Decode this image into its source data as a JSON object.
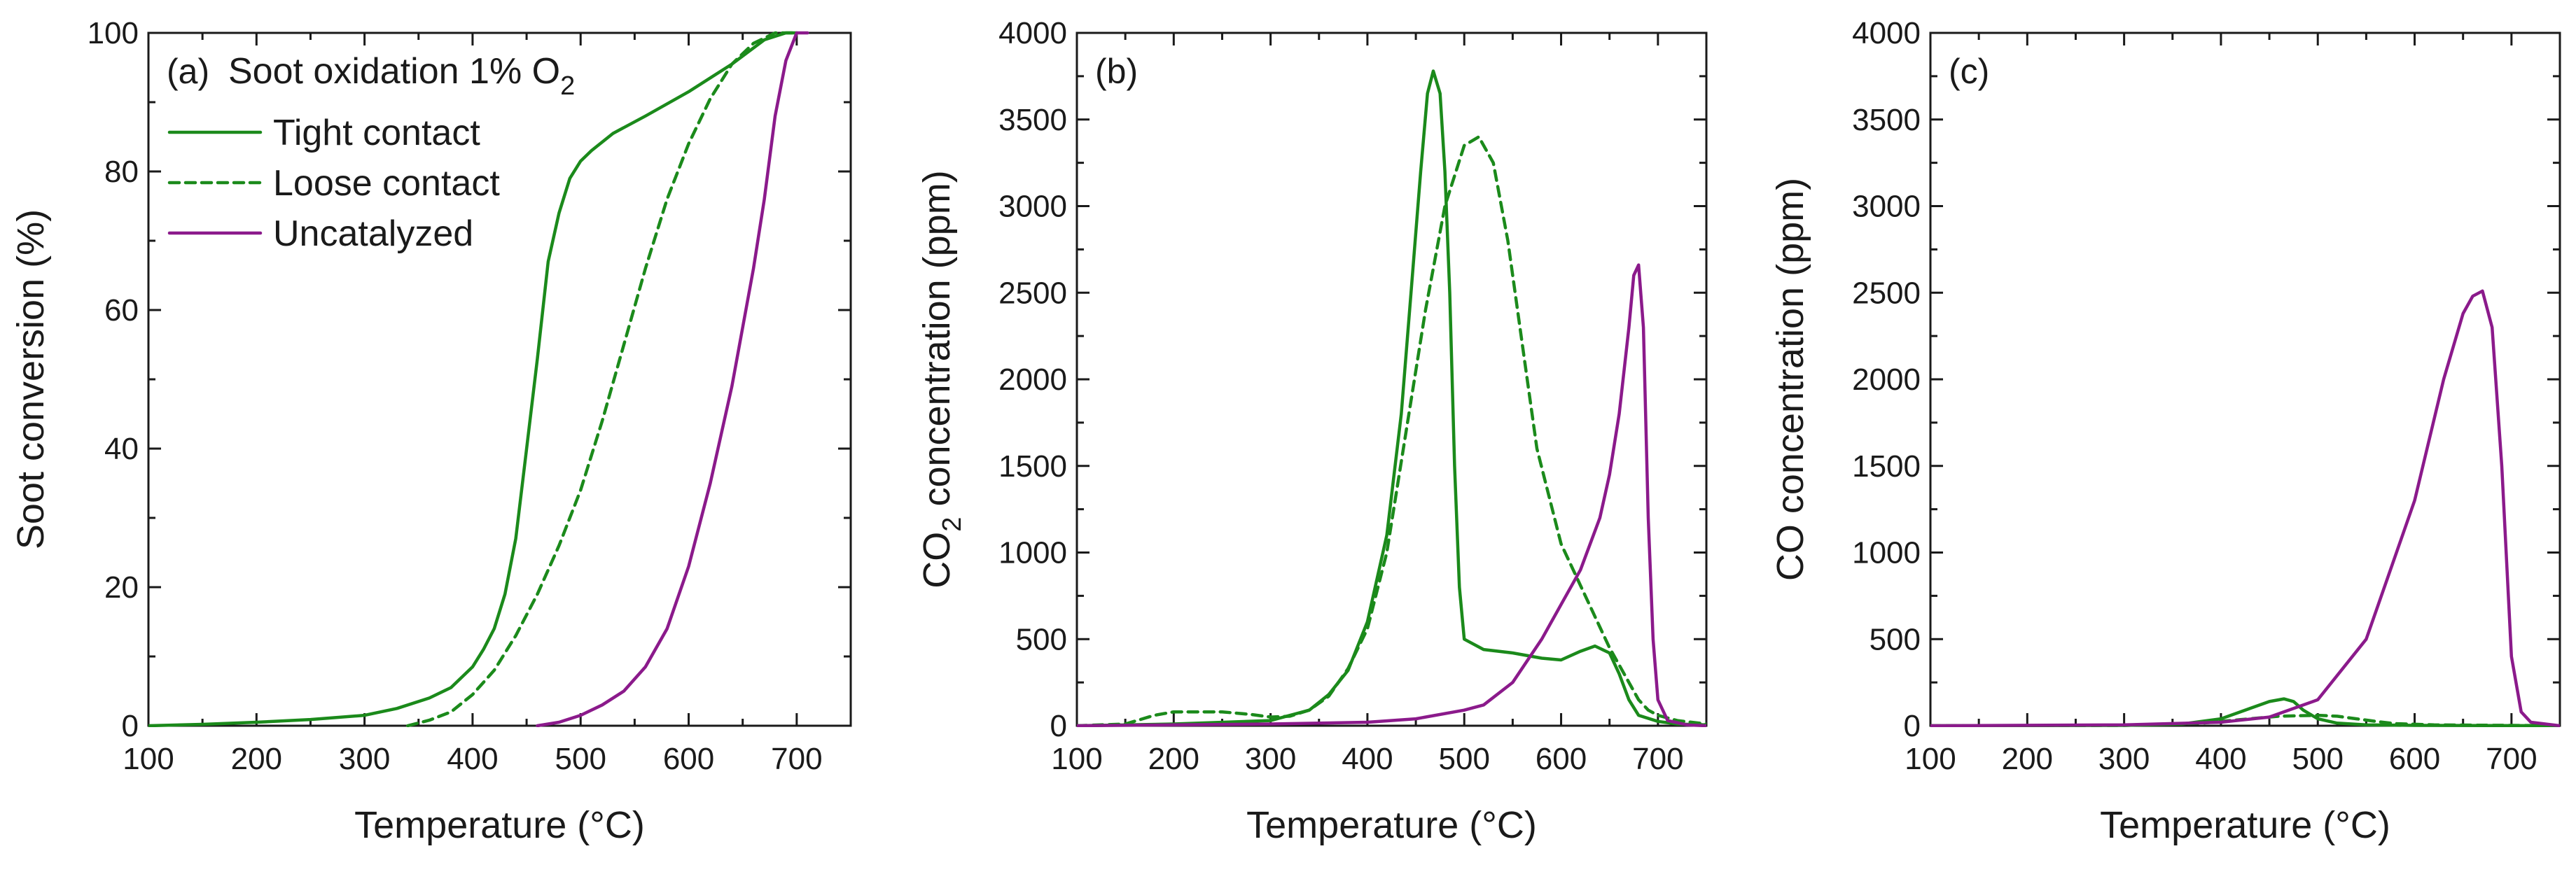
{
  "figure": {
    "colors": {
      "green": "#1b8a1b",
      "purple": "#8b1a8b",
      "axis": "#1a1a1a"
    }
  },
  "chart_data": [
    {
      "id": "a",
      "type": "line",
      "panel_label": "(a)",
      "title_main": "Soot oxidation 1% O",
      "title_sub": "2",
      "xlabel": "Temperature (°C)",
      "ylabel": "Soot conversion (%)",
      "xlim": [
        100,
        750
      ],
      "ylim": [
        0,
        100
      ],
      "xticks": [
        100,
        200,
        300,
        400,
        500,
        600,
        700
      ],
      "yticks": [
        0,
        20,
        40,
        60,
        80,
        100
      ],
      "minor_x": [
        150,
        250,
        350,
        450,
        550,
        650
      ],
      "minor_y": [
        10,
        30,
        50,
        70,
        90
      ],
      "legend": {
        "position": "top-left",
        "entries": [
          "Tight contact",
          "Loose contact",
          "Uncatalyzed"
        ]
      },
      "series": [
        {
          "name": "Tight contact",
          "color": "green",
          "dash": "solid",
          "x": [
            100,
            150,
            200,
            250,
            300,
            330,
            360,
            380,
            400,
            410,
            420,
            430,
            440,
            450,
            460,
            470,
            480,
            490,
            500,
            510,
            530,
            560,
            600,
            640,
            670,
            690,
            700
          ],
          "y": [
            0,
            0.2,
            0.5,
            0.9,
            1.5,
            2.5,
            4,
            5.5,
            8.5,
            11,
            14,
            19,
            27,
            40,
            53,
            67,
            74,
            79,
            81.5,
            83,
            85.5,
            88,
            91.5,
            95.5,
            99,
            100,
            100
          ]
        },
        {
          "name": "Loose contact",
          "color": "green",
          "dash": "dashed",
          "x": [
            340,
            360,
            380,
            400,
            420,
            440,
            460,
            480,
            500,
            520,
            540,
            560,
            580,
            600,
            620,
            640,
            660,
            680,
            700
          ],
          "y": [
            0,
            0.8,
            2,
            4.5,
            8,
            13,
            19,
            26,
            34,
            44,
            55,
            66,
            76,
            84,
            90.5,
            95.5,
            98.5,
            100,
            100
          ]
        },
        {
          "name": "Uncatalyzed",
          "color": "purple",
          "dash": "solid",
          "x": [
            460,
            480,
            500,
            520,
            540,
            560,
            580,
            600,
            620,
            640,
            660,
            670,
            680,
            690,
            700,
            710
          ],
          "y": [
            0,
            0.5,
            1.5,
            3,
            5,
            8.5,
            14,
            23,
            35,
            49,
            66,
            76,
            88,
            96,
            100,
            100
          ]
        }
      ]
    },
    {
      "id": "b",
      "type": "line",
      "panel_label": "(b)",
      "xlabel": "Temperature (°C)",
      "ylabel_main": "CO",
      "ylabel_sub": "2",
      "ylabel_rest": " concentration (ppm)",
      "xlim": [
        100,
        750
      ],
      "ylim": [
        0,
        4000
      ],
      "xticks": [
        100,
        200,
        300,
        400,
        500,
        600,
        700
      ],
      "yticks": [
        0,
        500,
        1000,
        1500,
        2000,
        2500,
        3000,
        3500,
        4000
      ],
      "minor_x": [
        150,
        250,
        350,
        450,
        550,
        650
      ],
      "minor_y": [
        250,
        750,
        1250,
        1750,
        2250,
        2750,
        3250,
        3750
      ],
      "series": [
        {
          "name": "Tight contact",
          "color": "green",
          "dash": "solid",
          "x": [
            100,
            200,
            300,
            340,
            360,
            380,
            400,
            420,
            435,
            445,
            455,
            462,
            468,
            475,
            480,
            485,
            490,
            495,
            500,
            520,
            550,
            580,
            600,
            620,
            635,
            650,
            660,
            670,
            680,
            700,
            720,
            750
          ],
          "y": [
            0,
            10,
            30,
            90,
            180,
            320,
            600,
            1100,
            1800,
            2500,
            3200,
            3650,
            3780,
            3650,
            3200,
            2500,
            1500,
            800,
            500,
            440,
            420,
            390,
            380,
            430,
            460,
            420,
            300,
            150,
            60,
            25,
            10,
            5
          ]
        },
        {
          "name": "Loose contact",
          "color": "green",
          "dash": "dashed",
          "x": [
            100,
            150,
            180,
            200,
            250,
            280,
            300,
            320,
            340,
            360,
            380,
            400,
            420,
            440,
            460,
            480,
            500,
            515,
            530,
            545,
            560,
            575,
            600,
            625,
            650,
            670,
            680,
            690,
            700,
            720,
            750
          ],
          "y": [
            0,
            10,
            60,
            80,
            80,
            65,
            50,
            55,
            90,
            170,
            330,
            560,
            1000,
            1700,
            2400,
            3000,
            3350,
            3400,
            3250,
            2800,
            2200,
            1600,
            1050,
            750,
            450,
            250,
            150,
            90,
            60,
            30,
            10
          ]
        },
        {
          "name": "Uncatalyzed",
          "color": "purple",
          "dash": "solid",
          "x": [
            100,
            300,
            400,
            450,
            500,
            520,
            550,
            580,
            600,
            620,
            640,
            650,
            660,
            670,
            675,
            680,
            685,
            690,
            695,
            700,
            710,
            730,
            750
          ],
          "y": [
            0,
            10,
            20,
            40,
            90,
            120,
            250,
            500,
            700,
            900,
            1200,
            1450,
            1800,
            2300,
            2600,
            2660,
            2300,
            1200,
            500,
            150,
            30,
            5,
            0
          ]
        }
      ]
    },
    {
      "id": "c",
      "type": "line",
      "panel_label": "(c)",
      "xlabel": "Temperature (°C)",
      "ylabel": "CO concentration (ppm)",
      "xlim": [
        100,
        750
      ],
      "ylim": [
        0,
        4000
      ],
      "xticks": [
        100,
        200,
        300,
        400,
        500,
        600,
        700
      ],
      "yticks": [
        0,
        500,
        1000,
        1500,
        2000,
        2500,
        3000,
        3500,
        4000
      ],
      "minor_x": [
        150,
        250,
        350,
        450,
        550,
        650
      ],
      "minor_y": [
        250,
        750,
        1250,
        1750,
        2250,
        2750,
        3250,
        3750
      ],
      "series": [
        {
          "name": "Tight contact",
          "color": "green",
          "dash": "solid",
          "x": [
            100,
            300,
            360,
            400,
            430,
            450,
            465,
            475,
            485,
            500,
            520,
            550,
            600,
            750
          ],
          "y": [
            0,
            2,
            10,
            40,
            100,
            140,
            155,
            140,
            90,
            40,
            15,
            5,
            2,
            0
          ]
        },
        {
          "name": "Loose contact",
          "color": "green",
          "dash": "dashed",
          "x": [
            100,
            300,
            380,
            420,
            460,
            500,
            520,
            540,
            560,
            580,
            620,
            700,
            750
          ],
          "y": [
            0,
            2,
            15,
            35,
            55,
            60,
            55,
            40,
            25,
            12,
            5,
            2,
            0
          ]
        },
        {
          "name": "Uncatalyzed",
          "color": "purple",
          "dash": "solid",
          "x": [
            100,
            300,
            400,
            450,
            500,
            550,
            600,
            630,
            650,
            660,
            670,
            680,
            690,
            700,
            710,
            720,
            750
          ],
          "y": [
            0,
            5,
            20,
            50,
            150,
            500,
            1300,
            2000,
            2380,
            2480,
            2510,
            2300,
            1500,
            400,
            80,
            20,
            0
          ]
        }
      ]
    }
  ]
}
